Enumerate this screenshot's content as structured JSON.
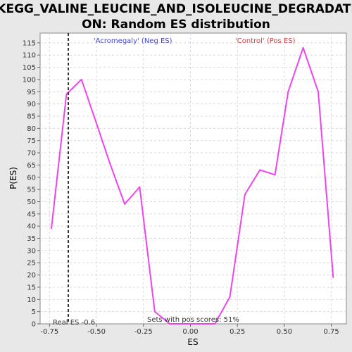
{
  "chart_data": {
    "type": "line",
    "title_line1": "KEGG_VALINE_LEUCINE_AND_ISOLEUCINE_DEGRADATI",
    "title_line2": "ON: Random ES distribution",
    "xlabel": "ES",
    "ylabel": "P(ES)",
    "xlim": [
      -0.8,
      0.83
    ],
    "ylim": [
      0,
      119
    ],
    "x_ticks": [
      -0.75,
      -0.5,
      -0.25,
      0.0,
      0.25,
      0.5,
      0.75
    ],
    "x_tick_labels": [
      "-0.75",
      "-0.50",
      "-0.25",
      "0.00",
      "0.25",
      "0.50",
      "0.75"
    ],
    "y_ticks": [
      0,
      5,
      10,
      15,
      20,
      25,
      30,
      35,
      40,
      45,
      50,
      55,
      60,
      65,
      70,
      75,
      80,
      85,
      90,
      95,
      100,
      105,
      110,
      115
    ],
    "grid": true,
    "series": [
      {
        "color": "#ee44ee",
        "x": [
          -0.74,
          -0.66,
          -0.58,
          -0.5,
          -0.43,
          -0.35,
          -0.27,
          -0.19,
          -0.11,
          -0.03,
          0.05,
          0.13,
          0.21,
          0.29,
          0.37,
          0.45,
          0.52,
          0.6,
          0.68,
          0.76
        ],
        "y": [
          39,
          94,
          100,
          82,
          66,
          49,
          56,
          5,
          0,
          0,
          0,
          0,
          11,
          53,
          63,
          61,
          95,
          113,
          95,
          19
        ]
      }
    ],
    "real_es_line": {
      "x": -0.65,
      "label": "Real ES -0.6"
    },
    "annotations": {
      "neg_label": "'Acromegaly' (Neg ES)",
      "neg_color": "#4444cc",
      "pos_label": "'Control' (Pos ES)",
      "pos_color": "#cc4444",
      "pos_scores_label": "Sets with pos scores: 51%"
    }
  }
}
